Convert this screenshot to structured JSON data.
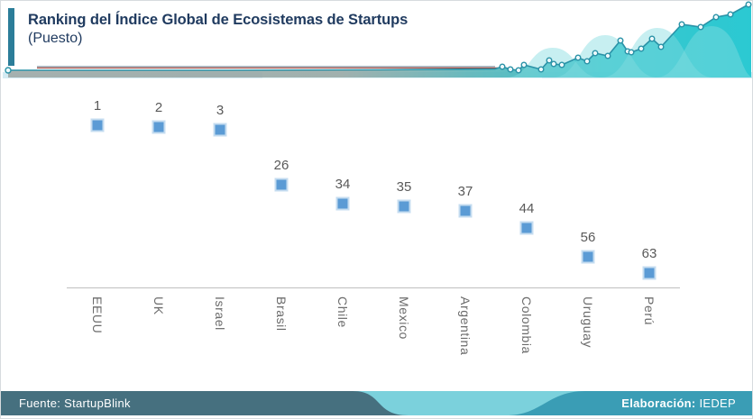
{
  "header": {
    "title": "Ranking del Índice Global de Ecosistemas de Startups",
    "subtitle": "(Puesto)"
  },
  "chart_data": {
    "type": "scatter",
    "title": "Ranking del Índice Global de Ecosistemas de Startups (Puesto)",
    "categories": [
      "EEUU",
      "UK",
      "Israel",
      "Brasil",
      "Chile",
      "Mexico",
      "Argentina",
      "Colombia",
      "Uruguay",
      "Perú"
    ],
    "values": [
      1,
      2,
      3,
      26,
      34,
      35,
      37,
      44,
      56,
      63
    ],
    "data_labels": true,
    "marker": "square",
    "marker_color": "#5b9bd5",
    "marker_border_color": "#c5dcf0",
    "value_label_color": "#595959",
    "category_label_color": "#6b6b6b",
    "axis_line_color": "#c0c0c0",
    "ylim": [
      0,
      70
    ],
    "y_inverted": true,
    "grid": false,
    "legend": "none",
    "category_label_rotation": "vertical"
  },
  "footer": {
    "source_text": "Fuente: StartupBlink",
    "elaboration_label": "Elaboración:",
    "elaboration_value": " IEDEP"
  },
  "colors": {
    "title": "#1f3a5f",
    "accent_bar": "#2b7d99",
    "sparkline_teal": "#2a92a7",
    "sparkline_fill_end": "#2bc9d2",
    "sparkline_maroon": "#9d4a42",
    "band_light_blue": "#d5ebf3",
    "footer_dark": "#46707f",
    "footer_blue": "#3a9db5",
    "footer_cyan": "#7bd1dc"
  }
}
